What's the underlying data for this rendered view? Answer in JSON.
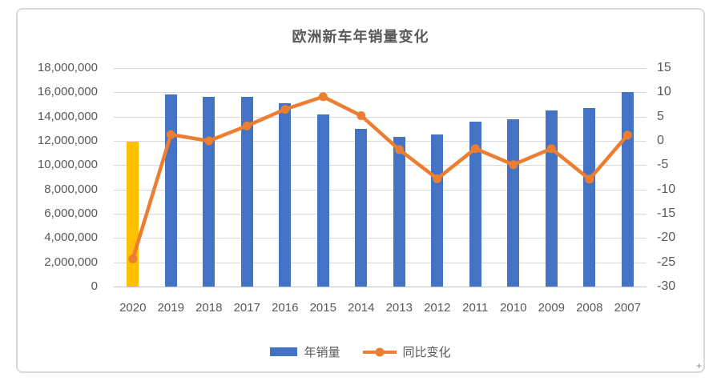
{
  "chart_data": {
    "type": "bar+line combo",
    "title": "欧洲新车年销量变化",
    "categories": [
      "2020",
      "2019",
      "2018",
      "2017",
      "2016",
      "2015",
      "2014",
      "2013",
      "2012",
      "2011",
      "2010",
      "2009",
      "2008",
      "2007"
    ],
    "series": [
      {
        "name": "年销量",
        "type": "bar",
        "axis": "left",
        "color": "#4472C4",
        "highlight_category": "2020",
        "highlight_color": "#FFC000",
        "values": [
          11960000,
          15800000,
          15600000,
          15600000,
          15100000,
          14200000,
          13000000,
          12300000,
          12500000,
          13600000,
          13800000,
          14500000,
          14700000,
          16000000
        ]
      },
      {
        "name": "同比变化",
        "type": "line",
        "axis": "right",
        "color": "#ED7D31",
        "values": [
          -24.3,
          1.3,
          0.0,
          3.1,
          6.5,
          9.1,
          5.2,
          -1.8,
          -7.8,
          -1.6,
          -4.9,
          -1.6,
          -7.9,
          1.2
        ]
      }
    ],
    "left_axis": {
      "min": 0,
      "max": 18000000,
      "step": 2000000,
      "tick_labels": [
        "18,000,000",
        "16,000,000",
        "14,000,000",
        "12,000,000",
        "10,000,000",
        "8,000,000",
        "6,000,000",
        "4,000,000",
        "2,000,000",
        "0"
      ]
    },
    "right_axis": {
      "min": -30,
      "max": 15,
      "step": 5,
      "tick_labels": [
        "15",
        "10",
        "5",
        "0",
        "-5",
        "-10",
        "-15",
        "-20",
        "-25",
        "-30"
      ]
    },
    "grid": true,
    "legend_position": "bottom",
    "gridline_color": "#d9d9d9",
    "text_color": "#595959"
  },
  "decorations": {
    "corner_glyph": "+"
  }
}
